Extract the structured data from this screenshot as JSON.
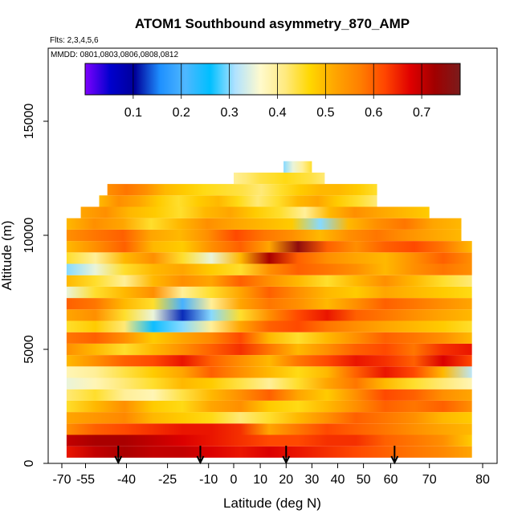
{
  "chart_data": {
    "type": "heatmap",
    "title": "ATOM1 Southbound asymmetry_870_AMP",
    "subtitle": "Flts: 2,3,4,5,6",
    "annotation": "MMDD: 0801,0803,0806,0808,0812",
    "xlabel": "Latitude (deg N)",
    "ylabel": "Altitude (m)",
    "xlim": [
      -70,
      80
    ],
    "ylim": [
      0,
      17500
    ],
    "x_ticks": [
      -70,
      -55,
      -40,
      -25,
      -10,
      0,
      10,
      20,
      30,
      40,
      50,
      60,
      70,
      80
    ],
    "y_ticks": [
      0,
      5000,
      10000,
      15000
    ],
    "colorbar": {
      "min": 0,
      "max": 0.78,
      "ticks": [
        0.1,
        0.2,
        0.3,
        0.4,
        0.5,
        0.6,
        0.7
      ],
      "colors": [
        "#7f00ff",
        "#0000cd",
        "#00009a",
        "#1e90ff",
        "#4fb7ff",
        "#00bfff",
        "#b0e2ff",
        "#fffacd",
        "#ffea80",
        "#ffd700",
        "#ffa500",
        "#ff7f00",
        "#ff4500",
        "#e00000",
        "#a00000",
        "#7a1c1c"
      ]
    },
    "flight_bottoms_lat": [
      -43,
      -13,
      20,
      61
    ],
    "bands": [
      {
        "alt": 500,
        "lat": [
          -67,
          78
        ],
        "values": [
          0.66,
          0.7,
          0.72,
          0.7,
          0.7,
          0.68,
          0.66,
          0.68,
          0.66,
          0.64,
          0.62,
          0.6,
          0.58,
          0.56,
          0.52
        ]
      },
      {
        "alt": 1000,
        "lat": [
          -67,
          78
        ],
        "values": [
          0.7,
          0.72,
          0.72,
          0.7,
          0.68,
          0.66,
          0.64,
          0.62,
          0.62,
          0.64,
          0.64,
          0.6,
          0.58,
          0.55,
          0.48
        ]
      },
      {
        "alt": 1500,
        "lat": [
          -67,
          78
        ],
        "values": [
          0.55,
          0.6,
          0.62,
          0.64,
          0.66,
          0.66,
          0.64,
          0.52,
          0.58,
          0.62,
          0.6,
          0.58,
          0.55,
          0.52,
          0.5
        ]
      },
      {
        "alt": 2000,
        "lat": [
          -67,
          78
        ],
        "values": [
          0.52,
          0.54,
          0.56,
          0.5,
          0.48,
          0.46,
          0.42,
          0.45,
          0.5,
          0.55,
          0.6,
          0.58,
          0.55,
          0.5,
          0.48
        ]
      },
      {
        "alt": 2500,
        "lat": [
          -67,
          78
        ],
        "values": [
          0.45,
          0.5,
          0.55,
          0.48,
          0.46,
          0.52,
          0.55,
          0.48,
          0.46,
          0.5,
          0.55,
          0.6,
          0.58,
          0.6,
          0.55
        ]
      },
      {
        "alt": 3000,
        "lat": [
          -67,
          78
        ],
        "values": [
          0.42,
          0.45,
          0.4,
          0.38,
          0.44,
          0.5,
          0.55,
          0.6,
          0.52,
          0.48,
          0.55,
          0.62,
          0.6,
          0.55,
          0.52
        ]
      },
      {
        "alt": 3500,
        "lat": [
          -67,
          78
        ],
        "values": [
          0.35,
          0.38,
          0.42,
          0.45,
          0.5,
          0.48,
          0.44,
          0.4,
          0.45,
          0.52,
          0.58,
          0.5,
          0.45,
          0.42,
          0.38
        ]
      },
      {
        "alt": 4000,
        "lat": [
          -67,
          78
        ],
        "values": [
          0.38,
          0.4,
          0.44,
          0.48,
          0.52,
          0.6,
          0.55,
          0.5,
          0.46,
          0.5,
          0.6,
          0.66,
          0.62,
          0.5,
          0.32
        ]
      },
      {
        "alt": 4500,
        "lat": [
          -67,
          78
        ],
        "values": [
          0.5,
          0.55,
          0.6,
          0.62,
          0.66,
          0.6,
          0.55,
          0.5,
          0.58,
          0.62,
          0.66,
          0.64,
          0.6,
          0.68,
          0.62
        ]
      },
      {
        "alt": 5000,
        "lat": [
          -67,
          78
        ],
        "values": [
          0.55,
          0.5,
          0.45,
          0.5,
          0.55,
          0.6,
          0.64,
          0.58,
          0.5,
          0.55,
          0.6,
          0.62,
          0.58,
          0.64,
          0.66
        ]
      },
      {
        "alt": 5500,
        "lat": [
          -67,
          78
        ],
        "values": [
          0.58,
          0.6,
          0.55,
          0.48,
          0.52,
          0.56,
          0.62,
          0.5,
          0.45,
          0.5,
          0.55,
          0.6,
          0.58,
          0.55,
          0.5
        ]
      },
      {
        "alt": 6000,
        "lat": [
          -67,
          78
        ],
        "values": [
          0.45,
          0.48,
          0.42,
          0.25,
          0.3,
          0.4,
          0.52,
          0.6,
          0.62,
          0.58,
          0.55,
          0.52,
          0.5,
          0.48,
          0.45
        ]
      },
      {
        "alt": 6500,
        "lat": [
          -67,
          78
        ],
        "values": [
          0.52,
          0.55,
          0.45,
          0.35,
          0.12,
          0.3,
          0.45,
          0.55,
          0.62,
          0.66,
          0.6,
          0.58,
          0.55,
          0.52,
          0.5
        ]
      },
      {
        "alt": 7000,
        "lat": [
          -67,
          78
        ],
        "values": [
          0.6,
          0.58,
          0.5,
          0.45,
          0.2,
          0.4,
          0.52,
          0.58,
          0.55,
          0.5,
          0.55,
          0.6,
          0.58,
          0.55,
          0.52
        ]
      },
      {
        "alt": 7500,
        "lat": [
          -67,
          78
        ],
        "values": [
          0.35,
          0.45,
          0.5,
          0.55,
          0.4,
          0.45,
          0.52,
          0.6,
          0.55,
          0.5,
          0.48,
          0.52,
          0.5,
          0.48,
          0.46
        ]
      },
      {
        "alt": 8000,
        "lat": [
          -67,
          78
        ],
        "values": [
          0.5,
          0.45,
          0.4,
          0.5,
          0.55,
          0.52,
          0.6,
          0.55,
          0.5,
          0.45,
          0.5,
          0.55,
          0.5,
          0.45,
          0.42
        ]
      },
      {
        "alt": 8500,
        "lat": [
          -67,
          78
        ],
        "values": [
          0.3,
          0.35,
          0.45,
          0.5,
          0.52,
          0.48,
          0.45,
          0.55,
          0.6,
          0.58,
          0.55,
          0.5,
          0.55,
          0.58,
          0.55
        ]
      },
      {
        "alt": 9000,
        "lat": [
          -67,
          78
        ],
        "values": [
          0.45,
          0.4,
          0.5,
          0.55,
          0.45,
          0.35,
          0.5,
          0.72,
          0.6,
          0.55,
          0.52,
          0.5,
          0.55,
          0.6,
          0.55
        ]
      },
      {
        "alt": 9500,
        "lat": [
          -67,
          78
        ],
        "values": [
          0.5,
          0.55,
          0.6,
          0.5,
          0.48,
          0.55,
          0.6,
          0.52,
          0.75,
          0.6,
          0.55,
          0.6,
          0.62,
          0.58,
          0.5
        ]
      },
      {
        "alt": 10000,
        "lat": [
          -67,
          76
        ],
        "values": [
          0.55,
          0.58,
          0.6,
          0.52,
          0.5,
          0.55,
          0.62,
          0.58,
          0.55,
          0.5,
          0.55,
          0.58,
          0.55,
          0.52,
          0.5
        ]
      },
      {
        "alt": 10500,
        "lat": [
          -67,
          76
        ],
        "values": [
          0.5,
          0.55,
          0.52,
          0.45,
          0.5,
          0.55,
          0.52,
          0.5,
          0.48,
          0.3,
          0.5,
          0.55,
          0.58,
          0.52,
          0.5
        ]
      },
      {
        "alt": 11000,
        "lat": [
          -58,
          70
        ],
        "values": [
          0.52,
          0.55,
          0.5,
          0.48,
          0.45,
          0.5,
          0.52,
          0.48,
          0.45,
          0.4,
          0.5,
          0.55,
          0.52,
          0.5,
          0.48
        ]
      },
      {
        "alt": 11500,
        "lat": [
          -50,
          55
        ],
        "values": [
          0.5,
          0.55,
          0.52,
          0.48,
          0.45,
          0.48,
          0.5,
          0.46,
          0.42,
          0.45,
          0.5,
          0.52,
          0.48,
          0.45,
          0.42
        ]
      },
      {
        "alt": 12000,
        "lat": [
          -47,
          55
        ],
        "values": [
          0.55,
          0.58,
          0.55,
          0.5,
          0.48,
          0.46,
          0.45,
          0.44,
          0.42,
          0.45,
          0.48,
          0.5,
          0.5,
          0.48,
          0.45
        ]
      },
      {
        "alt": 12500,
        "lat": [
          0,
          35
        ],
        "values": [
          0.4,
          0.42,
          0.44,
          0.45,
          0.46,
          0.45,
          0.44,
          0.42
        ]
      },
      {
        "alt": 13000,
        "lat": [
          19,
          30
        ],
        "values": [
          0.3,
          0.35,
          0.4,
          0.45
        ]
      }
    ]
  }
}
